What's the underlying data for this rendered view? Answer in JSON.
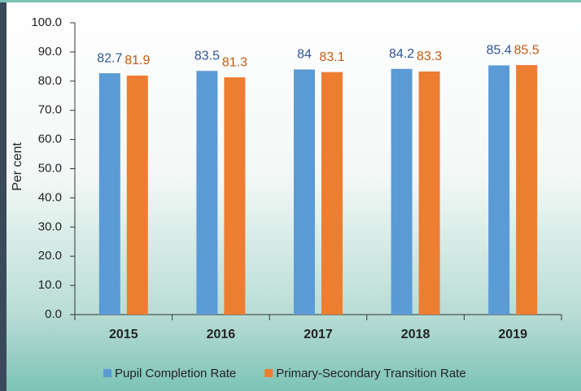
{
  "chart_data": {
    "type": "bar",
    "y_label": "Per cent",
    "categories": [
      "2015",
      "2016",
      "2017",
      "2018",
      "2019"
    ],
    "series": [
      {
        "name": "Pupil Completion Rate",
        "color": "#5b9bd5",
        "label_color": "#2f5597",
        "values": [
          82.7,
          83.5,
          84,
          84.2,
          85.4
        ]
      },
      {
        "name": "Primary-Secondary Transition Rate",
        "color": "#ed7d31",
        "label_color": "#c55a11",
        "values": [
          81.9,
          81.3,
          83.1,
          83.3,
          85.5
        ]
      }
    ],
    "ylim": [
      0,
      100
    ],
    "yticks": [
      {
        "value": 0,
        "label": "0.0"
      },
      {
        "value": 10,
        "label": "10.0"
      },
      {
        "value": 20,
        "label": "20.0"
      },
      {
        "value": 30,
        "label": "30.0"
      },
      {
        "value": 40,
        "label": "40.0"
      },
      {
        "value": 50,
        "label": "50.0"
      },
      {
        "value": 60,
        "label": "60.0"
      },
      {
        "value": 70,
        "label": "70.0"
      },
      {
        "value": 80,
        "label": "80.0"
      },
      {
        "value": 90,
        "label": "90.0"
      },
      {
        "value": 100,
        "label": "100.0"
      }
    ],
    "grid": false,
    "legend": "bottom"
  }
}
